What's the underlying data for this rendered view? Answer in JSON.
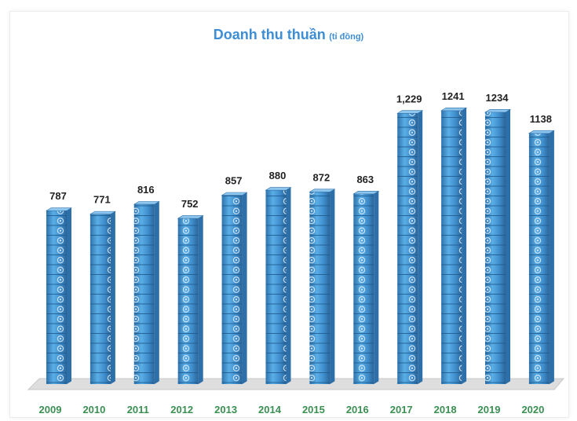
{
  "chart_data": {
    "type": "bar",
    "title": "Doanh thu thuần",
    "title_unit": "(tỉ đồng)",
    "categories": [
      "2009",
      "2010",
      "2011",
      "2012",
      "2013",
      "2014",
      "2015",
      "2016",
      "2017",
      "2018",
      "2019",
      "2020"
    ],
    "values": [
      787,
      771,
      816,
      752,
      857,
      880,
      872,
      863,
      1229,
      1241,
      1234,
      1138
    ],
    "value_labels": [
      "787",
      "771",
      "816",
      "752",
      "857",
      "880",
      "872",
      "863",
      "1,229",
      "1241",
      "1234",
      "1138"
    ],
    "ylim": [
      0,
      1300
    ],
    "grid": false,
    "legend": "none",
    "colors": {
      "bar_fill": "#4a9bd6",
      "bar_dark": "#2d6fa8",
      "bar_top": "#8fc6ee",
      "tick_label": "#3a8f52",
      "value_label": "#222222",
      "floor": "#d9d9d9"
    }
  }
}
